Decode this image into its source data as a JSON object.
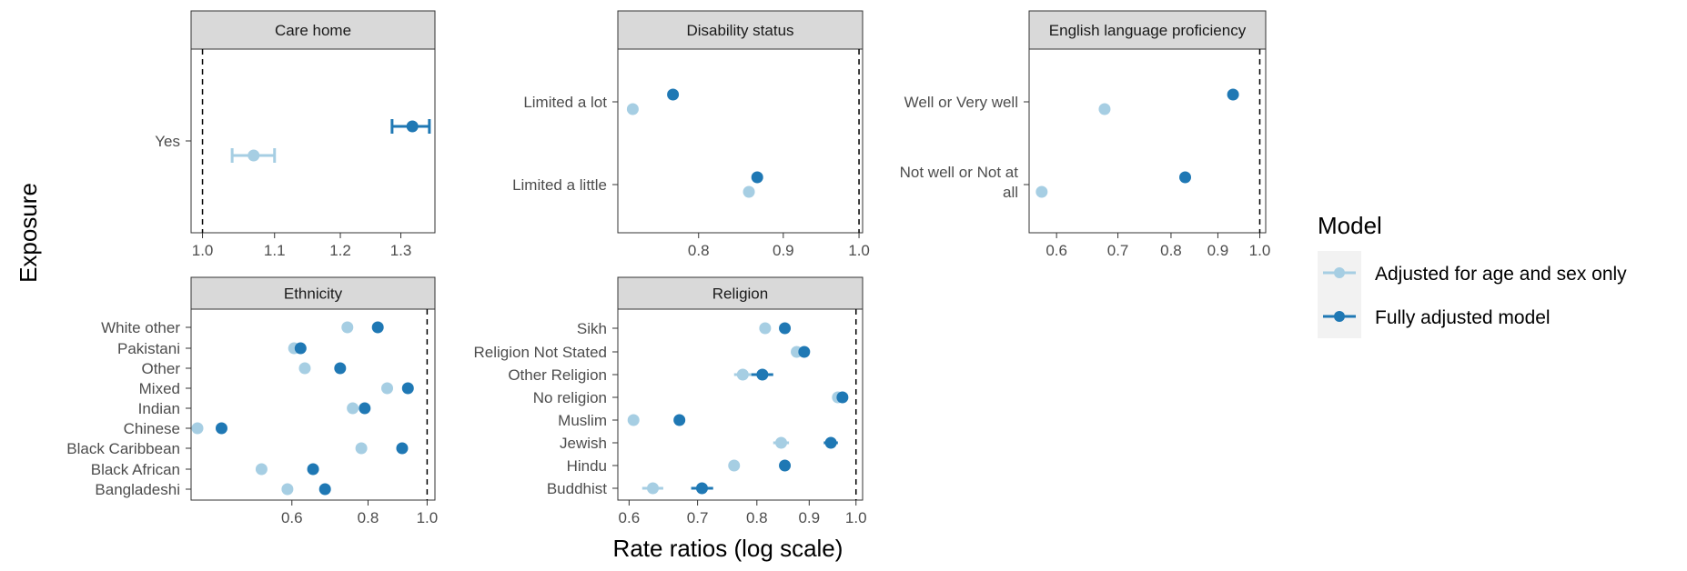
{
  "figure": {
    "x_axis_title": "Rate ratios (log scale)",
    "y_axis_title": "Exposure",
    "legend": {
      "title": "Model",
      "placement": "right",
      "entries": [
        {
          "label": "Adjusted for age and sex only",
          "color": "#a6cee3"
        },
        {
          "label": "Fully adjusted model",
          "color": "#1f78b4"
        }
      ]
    },
    "colors": {
      "age_sex": "#a6cee3",
      "full": "#1f78b4",
      "strip_bg": "#d9d9d9",
      "panel_border": "#333333",
      "grid_ref_line": "#000000"
    }
  },
  "chart_data": [
    {
      "type": "scatter",
      "panel": "Care home",
      "x_scale": "log",
      "xlim": [
        0.985,
        1.36
      ],
      "x_ticks": [
        "1.0",
        "1.1",
        "1.2",
        "1.3"
      ],
      "reference_line": 1.0,
      "categories": [
        "Yes"
      ],
      "series": [
        {
          "name": "Adjusted for age and sex only",
          "values": [
            1.07
          ],
          "ci_low": [
            1.04
          ],
          "ci_high": [
            1.1
          ]
        },
        {
          "name": "Fully adjusted model",
          "values": [
            1.32
          ],
          "ci_low": [
            1.285
          ],
          "ci_high": [
            1.35
          ]
        }
      ]
    },
    {
      "type": "scatter",
      "panel": "Disability status",
      "x_scale": "log",
      "xlim": [
        0.715,
        1.005
      ],
      "x_ticks": [
        "0.8",
        "0.9",
        "1.0"
      ],
      "reference_line": 1.0,
      "categories": [
        "Limited a lot",
        "Limited a little"
      ],
      "series": [
        {
          "name": "Adjusted for age and sex only",
          "values": [
            0.73,
            0.858
          ]
        },
        {
          "name": "Fully adjusted model",
          "values": [
            0.772,
            0.868
          ]
        }
      ]
    },
    {
      "type": "scatter",
      "panel": "English language proficiency",
      "x_scale": "log",
      "xlim": [
        0.56,
        1.015
      ],
      "x_ticks": [
        "0.6",
        "0.7",
        "0.8",
        "0.9",
        "1.0"
      ],
      "reference_line": 1.0,
      "categories": [
        "Well or Very well",
        "Not well or Not at all"
      ],
      "series": [
        {
          "name": "Adjusted for age and sex only",
          "values": [
            0.677,
            0.578
          ]
        },
        {
          "name": "Fully adjusted model",
          "values": [
            0.935,
            0.829
          ]
        }
      ]
    },
    {
      "type": "scatter",
      "panel": "Ethnicity",
      "x_scale": "log",
      "xlim": [
        0.41,
        1.03
      ],
      "x_ticks": [
        "0.6",
        "0.8",
        "1.0"
      ],
      "reference_line": 1.0,
      "categories": [
        "White other",
        "Pakistani",
        "Other",
        "Mixed",
        "Indian",
        "Chinese",
        "Black Caribbean",
        "Black African",
        "Bangladeshi"
      ],
      "series": [
        {
          "name": "Adjusted for age and sex only",
          "values": [
            0.74,
            0.605,
            0.63,
            0.86,
            0.755,
            0.42,
            0.78,
            0.535,
            0.59
          ]
        },
        {
          "name": "Fully adjusted model",
          "values": [
            0.83,
            0.62,
            0.72,
            0.93,
            0.79,
            0.46,
            0.91,
            0.65,
            0.68
          ]
        }
      ]
    },
    {
      "type": "scatter",
      "panel": "Religion",
      "x_scale": "log",
      "xlim": [
        0.585,
        1.015
      ],
      "x_ticks": [
        "0.6",
        "0.7",
        "0.8",
        "0.9",
        "1.0"
      ],
      "reference_line": 1.0,
      "categories": [
        "Sikh",
        "Religion Not Stated",
        "Other Religion",
        "No religion",
        "Muslim",
        "Jewish",
        "Hindu",
        "Buddhist"
      ],
      "series": [
        {
          "name": "Adjusted for age and sex only",
          "values": [
            0.815,
            0.875,
            0.775,
            0.96,
            0.606,
            0.845,
            0.76,
            0.633
          ],
          "ci_low": [
            null,
            null,
            0.76,
            null,
            null,
            0.83,
            null,
            0.618
          ],
          "ci_high": [
            null,
            null,
            0.79,
            null,
            null,
            0.86,
            null,
            0.648
          ]
        },
        {
          "name": "Fully adjusted model",
          "values": [
            0.852,
            0.89,
            0.81,
            0.97,
            0.672,
            0.945,
            0.852,
            0.707
          ],
          "ci_low": [
            null,
            null,
            0.79,
            null,
            null,
            0.93,
            null,
            0.69
          ],
          "ci_high": [
            null,
            null,
            0.83,
            null,
            null,
            0.96,
            null,
            0.725
          ]
        }
      ]
    }
  ]
}
